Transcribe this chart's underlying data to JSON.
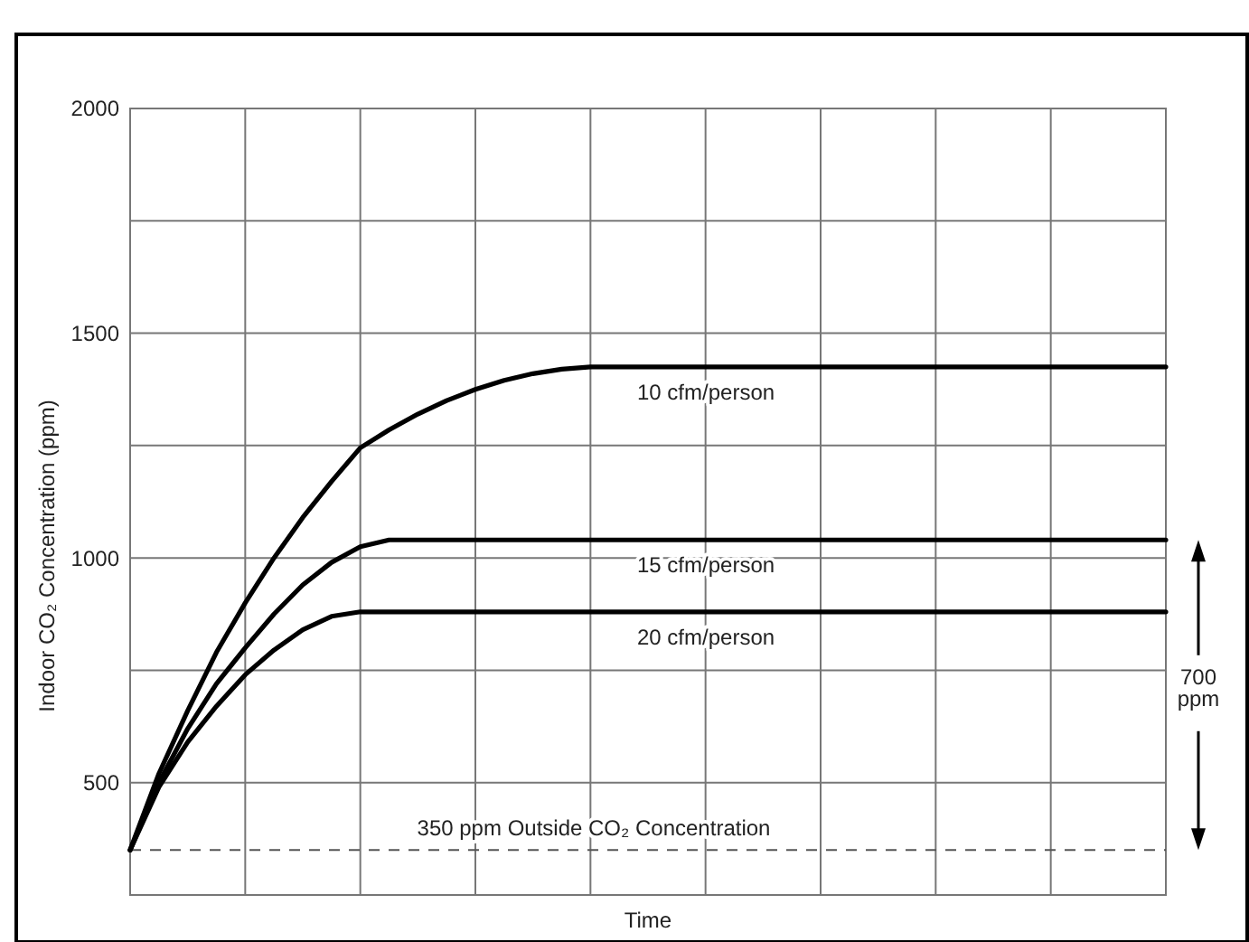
{
  "chart_data": {
    "type": "line",
    "ylabel": "Indoor CO₂ Concentration (ppm)",
    "xlabel": "Time",
    "categories": [
      null,
      null,
      null,
      null,
      null,
      null,
      null,
      null,
      null,
      null,
      null,
      null,
      null,
      null,
      null,
      null,
      null,
      null,
      null,
      null,
      null,
      null,
      null,
      null,
      null,
      null,
      null,
      null,
      null,
      null,
      null,
      null,
      null,
      null,
      null,
      null,
      null
    ],
    "ylim": [
      250,
      2000
    ],
    "yticks": [
      500,
      {
        "value": 750,
        "label": null
      },
      1000,
      {
        "value": 1250,
        "label": null
      },
      1500,
      {
        "value": 1750,
        "label": null
      },
      2000
    ],
    "grid": true,
    "marker": "none",
    "line_style": "solid",
    "series": [
      {
        "name": "10 cfm/person",
        "color": "#000000",
        "values": [
          350,
          520,
          660,
          790,
          900,
          1000,
          1090,
          1170,
          1245,
          1285,
          1320,
          1350,
          1375,
          1395,
          1410,
          1420,
          1425,
          1425,
          1425,
          1425,
          1425,
          1425,
          1425,
          1425,
          1425,
          1425,
          1425,
          1425,
          1425,
          1425,
          1425,
          1425,
          1425,
          1425,
          1425,
          1425,
          1425
        ]
      },
      {
        "name": "15 cfm/person",
        "color": "#000000",
        "values": [
          350,
          500,
          620,
          720,
          800,
          875,
          940,
          990,
          1025,
          1040,
          1040,
          1040,
          1040,
          1040,
          1040,
          1040,
          1040,
          1040,
          1040,
          1040,
          1040,
          1040,
          1040,
          1040,
          1040,
          1040,
          1040,
          1040,
          1040,
          1040,
          1040,
          1040,
          1040,
          1040,
          1040,
          1040,
          1040
        ]
      },
      {
        "name": "20 cfm/person",
        "color": "#000000",
        "values": [
          350,
          490,
          590,
          670,
          740,
          795,
          840,
          870,
          880,
          880,
          880,
          880,
          880,
          880,
          880,
          880,
          880,
          880,
          880,
          880,
          880,
          880,
          880,
          880,
          880,
          880,
          880,
          880,
          880,
          880,
          880,
          880,
          880,
          880,
          880,
          880,
          880
        ]
      }
    ],
    "ref_lines": [
      {
        "axis": "y",
        "value": 350,
        "label": "350 ppm Outside CO₂ Concentration",
        "color": "#555555",
        "line_style": "dashed"
      }
    ],
    "annotations": [
      "700 ppm"
    ]
  }
}
